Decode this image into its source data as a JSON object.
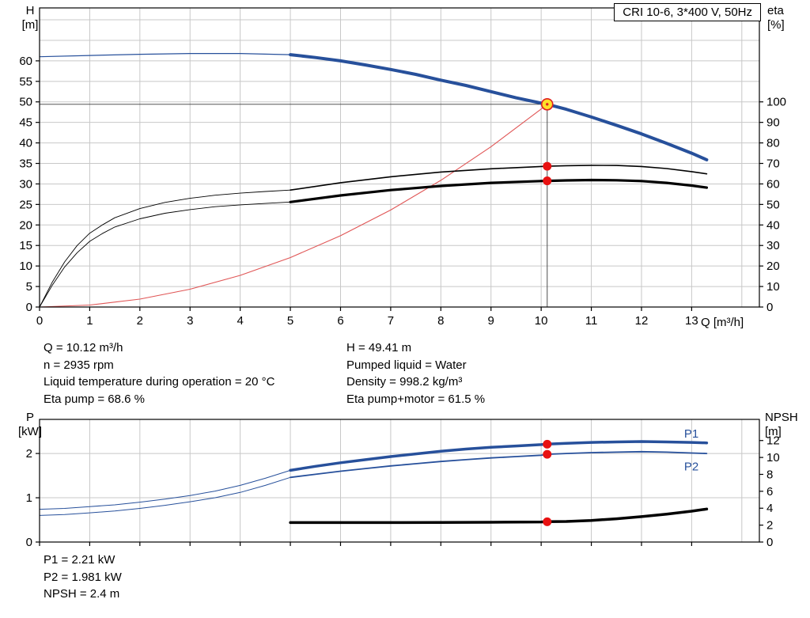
{
  "info": {
    "left": [
      "Q = 10.12 m³/h",
      "n = 2935 rpm",
      "Liquid temperature during operation = 20 °C",
      "Eta pump = 68.6 %"
    ],
    "right": [
      "H = 49.41 m",
      "Pumped liquid = Water",
      "Density = 998.2 kg/m³",
      "Eta pump+motor = 61.5 %"
    ]
  },
  "results": [
    "P1 = 2.21 kW",
    "P2 = 1.981 kW",
    "NPSH = 2.4 m"
  ],
  "chart_data": [
    {
      "type": "line",
      "title": "CRI 10-6, 3*400 V, 50Hz",
      "x_axis": {
        "label": "Q [m³/h]",
        "min": 0,
        "max": 14.35,
        "ticks": [
          0,
          1,
          2,
          3,
          4,
          5,
          6,
          7,
          8,
          9,
          10,
          11,
          12,
          13
        ]
      },
      "y_left": {
        "label": [
          "H",
          "[m]"
        ],
        "min": 0,
        "max": 72.9,
        "ticks": [
          0,
          5,
          10,
          15,
          20,
          25,
          30,
          35,
          40,
          45,
          50,
          55,
          60
        ]
      },
      "y_right": {
        "label": [
          "eta",
          "[%]"
        ],
        "min": 0,
        "max": 145.8,
        "ticks": [
          0,
          10,
          20,
          30,
          40,
          50,
          60,
          70,
          80,
          90,
          100
        ]
      },
      "grid_color": "#c8c8c8",
      "operating_point": {
        "Q": 10.12,
        "H": 49.41,
        "eta_pump": 68.6,
        "eta_pump_motor": 61.5
      },
      "series": [
        {
          "name": "duty-crosshair-horizontal",
          "axis": "left",
          "color": "#3a3a3a",
          "width": 0.9,
          "points": [
            [
              0,
              49.41
            ],
            [
              10.12,
              49.41
            ]
          ]
        },
        {
          "name": "duty-crosshair-vertical",
          "axis": "left",
          "color": "#3a3a3a",
          "width": 0.9,
          "points": [
            [
              10.12,
              0
            ],
            [
              10.12,
              49.41
            ]
          ]
        },
        {
          "name": "system-curve",
          "axis": "left",
          "color": "#e05555",
          "width": 1.1,
          "points": [
            [
              0,
              0
            ],
            [
              1,
              0.48
            ],
            [
              2,
              1.93
            ],
            [
              3,
              4.34
            ],
            [
              4,
              7.72
            ],
            [
              5,
              12.06
            ],
            [
              6,
              17.37
            ],
            [
              7,
              23.64
            ],
            [
              8,
              30.88
            ],
            [
              9,
              39.08
            ],
            [
              10,
              48.25
            ],
            [
              10.12,
              49.41
            ]
          ]
        },
        {
          "name": "eta-pump-preview",
          "axis": "right",
          "color": "#000000",
          "width": 0.9,
          "points": [
            [
              0,
              0
            ],
            [
              0.25,
              12
            ],
            [
              0.5,
              22
            ],
            [
              0.75,
              30
            ],
            [
              1,
              36
            ],
            [
              1.25,
              40
            ],
            [
              1.5,
              43.5
            ],
            [
              2,
              48
            ],
            [
              2.5,
              51
            ],
            [
              3,
              53
            ],
            [
              3.5,
              54.5
            ],
            [
              4,
              55.5
            ],
            [
              4.5,
              56.3
            ],
            [
              5,
              57
            ]
          ]
        },
        {
          "name": "eta-pump-curve",
          "axis": "right",
          "color": "#000000",
          "width": 1.6,
          "points": [
            [
              5,
              57
            ],
            [
              6,
              60.6
            ],
            [
              7,
              63.5
            ],
            [
              8,
              65.8
            ],
            [
              9,
              67.4
            ],
            [
              10,
              68.5
            ],
            [
              10.12,
              68.6
            ],
            [
              10.5,
              68.9
            ],
            [
              11,
              69.1
            ],
            [
              11.5,
              69.0
            ],
            [
              12,
              68.5
            ],
            [
              12.5,
              67.5
            ],
            [
              13,
              66.0
            ],
            [
              13.3,
              64.9
            ]
          ]
        },
        {
          "name": "eta-pump-motor-preview",
          "axis": "right",
          "color": "#000000",
          "width": 0.9,
          "points": [
            [
              0,
              0
            ],
            [
              0.25,
              10.5
            ],
            [
              0.5,
              19.5
            ],
            [
              0.75,
              26.5
            ],
            [
              1,
              32
            ],
            [
              1.25,
              35.8
            ],
            [
              1.5,
              39
            ],
            [
              2,
              43
            ],
            [
              2.5,
              45.7
            ],
            [
              3,
              47.5
            ],
            [
              3.5,
              48.9
            ],
            [
              4,
              49.8
            ],
            [
              4.5,
              50.5
            ],
            [
              5,
              51.2
            ]
          ]
        },
        {
          "name": "eta-pump-motor-curve",
          "axis": "right",
          "color": "#000000",
          "width": 3.2,
          "points": [
            [
              5,
              51.2
            ],
            [
              6,
              54.4
            ],
            [
              7,
              57.0
            ],
            [
              8,
              59.0
            ],
            [
              9,
              60.5
            ],
            [
              10,
              61.4
            ],
            [
              10.12,
              61.5
            ],
            [
              10.5,
              61.7
            ],
            [
              11,
              61.9
            ],
            [
              11.5,
              61.8
            ],
            [
              12,
              61.4
            ],
            [
              12.5,
              60.5
            ],
            [
              13,
              59.2
            ],
            [
              13.3,
              58.2
            ]
          ]
        },
        {
          "name": "qh-preview",
          "axis": "left",
          "color": "#27509b",
          "width": 1.2,
          "points": [
            [
              0,
              61.0
            ],
            [
              1,
              61.3
            ],
            [
              2,
              61.6
            ],
            [
              3,
              61.8
            ],
            [
              4,
              61.8
            ],
            [
              5,
              61.5
            ]
          ]
        },
        {
          "name": "qh-curve",
          "axis": "left",
          "color": "#27509b",
          "width": 4,
          "points": [
            [
              5,
              61.5
            ],
            [
              5.5,
              60.8
            ],
            [
              6,
              60.0
            ],
            [
              6.5,
              59.0
            ],
            [
              7,
              57.9
            ],
            [
              7.5,
              56.7
            ],
            [
              8,
              55.3
            ],
            [
              8.5,
              54.0
            ],
            [
              9,
              52.5
            ],
            [
              9.5,
              51.0
            ],
            [
              10,
              49.7
            ],
            [
              10.12,
              49.41
            ],
            [
              10.5,
              48.2
            ],
            [
              11,
              46.3
            ],
            [
              11.5,
              44.3
            ],
            [
              12,
              42.2
            ],
            [
              12.5,
              39.9
            ],
            [
              13,
              37.5
            ],
            [
              13.3,
              35.9
            ]
          ]
        }
      ],
      "markers": [
        {
          "name": "eta-pump-point",
          "q": 10.12,
          "v": 68.6,
          "axis": "right",
          "r": 5.5,
          "fill": "#e81111"
        },
        {
          "name": "eta-pump-motor-point",
          "q": 10.12,
          "v": 61.5,
          "axis": "right",
          "r": 5.5,
          "fill": "#e81111"
        },
        {
          "name": "duty-point",
          "q": 10.12,
          "v": 49.41,
          "axis": "left",
          "r": 7,
          "fill": "#ffdf28",
          "stroke": "#e02020",
          "stroke_width": 1.6
        },
        {
          "name": "duty-point-center",
          "q": 10.12,
          "v": 49.41,
          "axis": "left",
          "r": 1.7,
          "fill": "#e02020"
        }
      ],
      "annotations": []
    },
    {
      "type": "line",
      "title": "",
      "x_axis": {
        "label": "",
        "min": 0,
        "max": 14.35,
        "ticks": [
          0,
          1,
          2,
          3,
          4,
          5,
          6,
          7,
          8,
          9,
          10,
          11,
          12,
          13
        ]
      },
      "y_left": {
        "label": [
          "P",
          "[kW]"
        ],
        "min": 0,
        "max": 2.77,
        "ticks": [
          0,
          1,
          2
        ]
      },
      "y_right": {
        "label": [
          "NPSH",
          "[m]"
        ],
        "min": 0,
        "max": 14.5,
        "ticks": [
          0,
          2,
          4,
          6,
          8,
          10,
          12
        ]
      },
      "grid_color": "#c8c8c8",
      "operating_point": {
        "Q": 10.12,
        "P1": 2.21,
        "P2": 1.981,
        "NPSH": 2.4
      },
      "series": [
        {
          "name": "p1-preview",
          "axis": "left",
          "color": "#27509b",
          "width": 1,
          "points": [
            [
              0,
              0.74
            ],
            [
              0.5,
              0.76
            ],
            [
              1,
              0.8
            ],
            [
              1.5,
              0.84
            ],
            [
              2,
              0.9
            ],
            [
              2.5,
              0.97
            ],
            [
              3,
              1.05
            ],
            [
              3.5,
              1.15
            ],
            [
              4,
              1.28
            ],
            [
              4.5,
              1.44
            ],
            [
              5,
              1.62
            ]
          ]
        },
        {
          "name": "p1-curve",
          "axis": "left",
          "color": "#27509b",
          "width": 3.5,
          "points": [
            [
              5,
              1.62
            ],
            [
              5.5,
              1.71
            ],
            [
              6,
              1.79
            ],
            [
              6.5,
              1.86
            ],
            [
              7,
              1.93
            ],
            [
              7.5,
              1.99
            ],
            [
              8,
              2.05
            ],
            [
              8.5,
              2.1
            ],
            [
              9,
              2.14
            ],
            [
              9.5,
              2.17
            ],
            [
              10,
              2.2
            ],
            [
              10.12,
              2.21
            ],
            [
              10.5,
              2.23
            ],
            [
              11,
              2.25
            ],
            [
              11.5,
              2.26
            ],
            [
              12,
              2.27
            ],
            [
              12.5,
              2.26
            ],
            [
              13,
              2.25
            ],
            [
              13.3,
              2.24
            ]
          ]
        },
        {
          "name": "p2-preview",
          "axis": "left",
          "color": "#27509b",
          "width": 1,
          "points": [
            [
              0,
              0.6
            ],
            [
              0.5,
              0.62
            ],
            [
              1,
              0.66
            ],
            [
              1.5,
              0.7
            ],
            [
              2,
              0.76
            ],
            [
              2.5,
              0.83
            ],
            [
              3,
              0.91
            ],
            [
              3.5,
              1.0
            ],
            [
              4,
              1.12
            ],
            [
              4.5,
              1.28
            ],
            [
              5,
              1.46
            ]
          ]
        },
        {
          "name": "p2-curve",
          "axis": "left",
          "color": "#27509b",
          "width": 1.8,
          "points": [
            [
              5,
              1.46
            ],
            [
              5.5,
              1.53
            ],
            [
              6,
              1.6
            ],
            [
              6.5,
              1.66
            ],
            [
              7,
              1.72
            ],
            [
              7.5,
              1.77
            ],
            [
              8,
              1.82
            ],
            [
              8.5,
              1.86
            ],
            [
              9,
              1.9
            ],
            [
              9.5,
              1.93
            ],
            [
              10,
              1.96
            ],
            [
              10.12,
              1.981
            ],
            [
              10.5,
              2.0
            ],
            [
              11,
              2.02
            ],
            [
              11.5,
              2.03
            ],
            [
              12,
              2.04
            ],
            [
              12.5,
              2.03
            ],
            [
              13,
              2.01
            ],
            [
              13.3,
              2.0
            ]
          ]
        },
        {
          "name": "npsh-curve",
          "axis": "right",
          "color": "#000000",
          "width": 3.5,
          "points": [
            [
              5,
              2.3
            ],
            [
              6,
              2.3
            ],
            [
              7,
              2.3
            ],
            [
              8,
              2.31
            ],
            [
              9,
              2.34
            ],
            [
              10,
              2.38
            ],
            [
              10.12,
              2.4
            ],
            [
              10.5,
              2.43
            ],
            [
              11,
              2.55
            ],
            [
              11.5,
              2.75
            ],
            [
              12,
              3.0
            ],
            [
              12.5,
              3.3
            ],
            [
              13,
              3.65
            ],
            [
              13.3,
              3.9
            ]
          ]
        }
      ],
      "markers": [
        {
          "name": "p1-point",
          "q": 10.12,
          "v": 2.21,
          "axis": "left",
          "r": 5.5,
          "fill": "#e81111"
        },
        {
          "name": "p2-point",
          "q": 10.12,
          "v": 1.981,
          "axis": "left",
          "r": 5.5,
          "fill": "#e81111"
        },
        {
          "name": "npsh-point",
          "q": 10.12,
          "v": 2.4,
          "axis": "right",
          "r": 5.5,
          "fill": "#e81111"
        }
      ],
      "annotations": [
        {
          "text": "P1",
          "q": 12.85,
          "v": 2.36,
          "axis": "left",
          "color": "#27509b"
        },
        {
          "text": "P2",
          "q": 12.85,
          "v": 1.62,
          "axis": "left",
          "color": "#27509b"
        }
      ]
    }
  ]
}
